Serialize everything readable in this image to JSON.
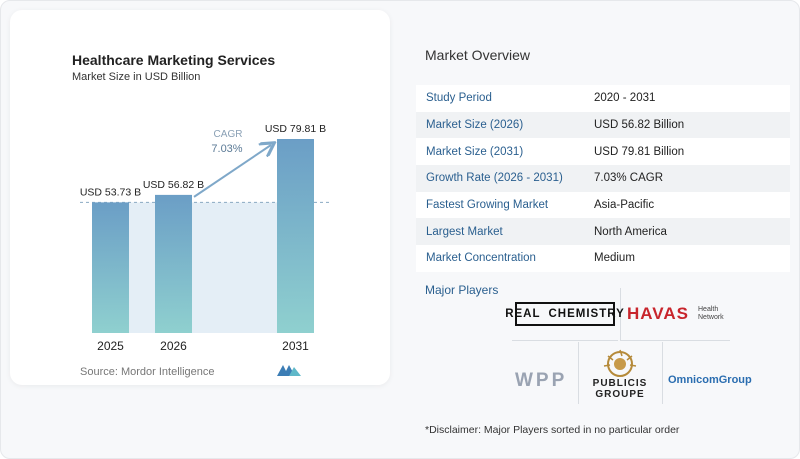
{
  "chart_data": {
    "type": "bar",
    "title": "Healthcare Marketing Services",
    "subtitle": "Market Size in USD Billion",
    "categories": [
      "2025",
      "2026",
      "2031"
    ],
    "values": [
      53.73,
      56.82,
      79.81
    ],
    "data_labels": [
      "USD 53.73 B",
      "USD 56.82 B",
      "USD 79.81 B"
    ],
    "cagr_label": "CAGR",
    "cagr_value": "7.03%",
    "colors": {
      "bar_top": "#6b9ec6",
      "bar_bottom": "#8fd0cf",
      "shade": "#e4eef6",
      "arrow": "#7fa8c9",
      "dash": "#8aa9c2"
    }
  },
  "source": "Source: Mordor Intelligence",
  "overview": {
    "title": "Market Overview",
    "rows": [
      {
        "label": "Study Period",
        "value": "2020 - 2031"
      },
      {
        "label": "Market Size (2026)",
        "value": "USD 56.82 Billion"
      },
      {
        "label": "Market Size (2031)",
        "value": "USD 79.81 Billion"
      },
      {
        "label": "Growth Rate (2026 - 2031)",
        "value": "7.03% CAGR"
      },
      {
        "label": "Fastest Growing Market",
        "value": "Asia-Pacific"
      },
      {
        "label": "Largest Market",
        "value": "North America"
      },
      {
        "label": "Market Concentration",
        "value": "Medium"
      }
    ]
  },
  "players": {
    "title": "Major Players",
    "real_a": "REAL",
    "real_b": "CHEMISTRY",
    "havas": "HAVAS",
    "havas_sub": "Health Network",
    "wpp": "WPP",
    "publicis_1": "PUBLICIS",
    "publicis_2": "GROUPE",
    "omnicom": "OmnicomGroup"
  },
  "disclaimer": "*Disclaimer: Major Players sorted in no particular order"
}
